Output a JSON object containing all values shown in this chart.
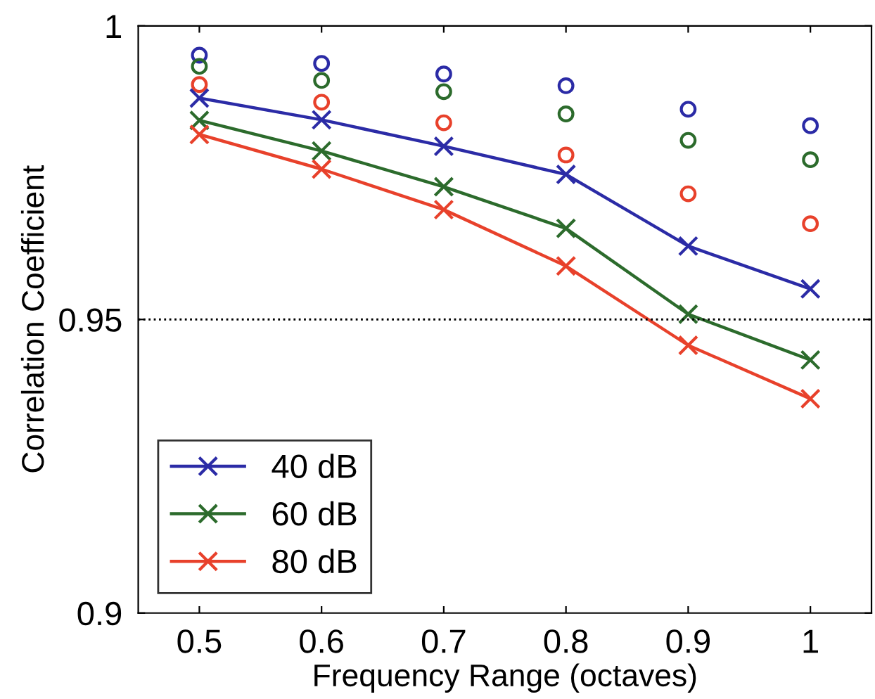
{
  "chart_data": {
    "type": "line",
    "xlabel": "Frequency Range (octaves)",
    "ylabel": "Correlation Coefficient",
    "x": [
      0.5,
      0.6,
      0.7,
      0.8,
      0.9,
      1
    ],
    "xlim": [
      0.45,
      1.05
    ],
    "xticks": [
      0.5,
      0.6,
      0.7,
      0.8,
      0.9,
      1
    ],
    "ylim": [
      0.9,
      1
    ],
    "yticks": [
      0.9,
      0.95,
      1
    ],
    "grid": false,
    "legend": "bottom left",
    "marker": "cross",
    "line_style": "solid",
    "ref_lines": [
      {
        "axis": "y",
        "value": 0.95,
        "color": "#000000",
        "line_style": "dotted"
      }
    ],
    "series": [
      {
        "name": "40 dB",
        "color": "#2b2ba6",
        "values": [
          0.9877,
          0.984,
          0.9795,
          0.9747,
          0.9625,
          0.9552
        ]
      },
      {
        "name": "60 dB",
        "color": "#2c6b2c",
        "values": [
          0.9839,
          0.9787,
          0.9726,
          0.9655,
          0.9509,
          0.9431
        ]
      },
      {
        "name": "80 dB",
        "color": "#e8412b",
        "values": [
          0.9815,
          0.9756,
          0.9687,
          0.9591,
          0.9456,
          0.9365
        ]
      },
      {
        "type": "scatter",
        "marker": "circle",
        "color": "#2b2ba6",
        "values": [
          0.995,
          0.9936,
          0.9918,
          0.9898,
          0.9858,
          0.983
        ]
      },
      {
        "type": "scatter",
        "marker": "circle",
        "color": "#2c6b2c",
        "values": [
          0.9931,
          0.9907,
          0.9888,
          0.985,
          0.9805,
          0.9772
        ]
      },
      {
        "type": "scatter",
        "marker": "circle",
        "color": "#e8412b",
        "values": [
          0.99,
          0.987,
          0.9835,
          0.978,
          0.9714,
          0.9663
        ]
      }
    ]
  }
}
